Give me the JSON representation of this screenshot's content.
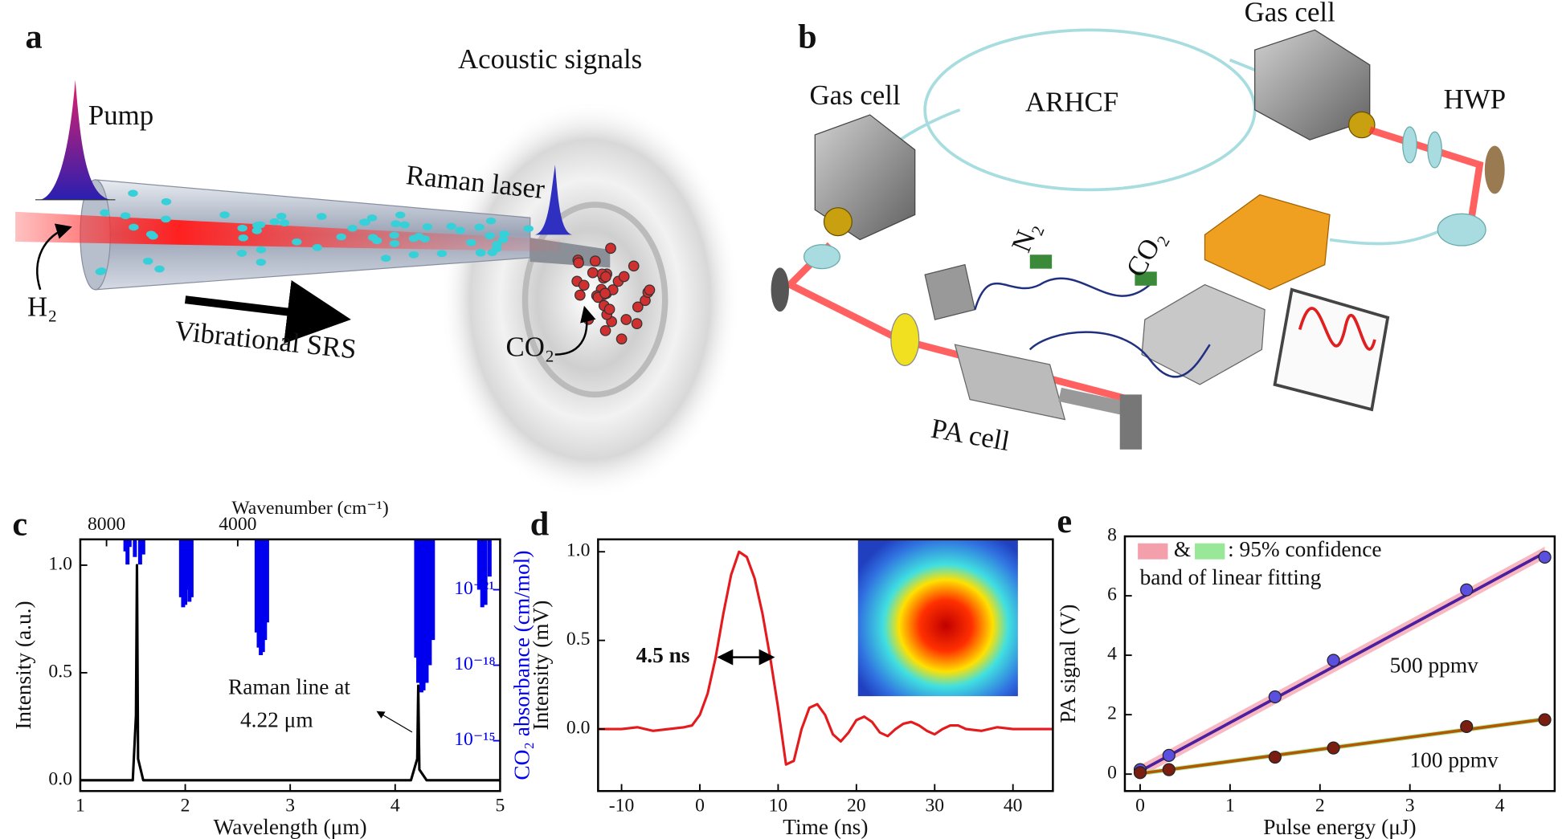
{
  "panel_a": {
    "label": "a",
    "acoustic": "Acoustic signals",
    "pump": "Pump",
    "raman": "Raman laser",
    "h2": "H₂",
    "srs": "Vibrational SRS",
    "co2": "CO₂"
  },
  "panel_b": {
    "label": "b",
    "gas_cell_top": "Gas cell",
    "gas_cell_left": "Gas cell",
    "fiber": "ARHCF",
    "hwp": "HWP",
    "n2": "N₂",
    "co2": "CO₂",
    "pa_cell": "PA cell"
  },
  "chart_data": [
    {
      "type": "line",
      "panel_label": "c",
      "xlabel": "Wavelength (μm)",
      "ylabel": "Intensity (a.u.)",
      "x2label": "Wavenumber (cm⁻¹)",
      "y2label": "CO₂ absorbance (cm/mol)",
      "xlim": [
        1,
        5
      ],
      "xticks": [
        1,
        2,
        3,
        4,
        5
      ],
      "ylim": [
        -0.05,
        1.12
      ],
      "yticks": [
        {
          "value": 0,
          "label": "0.0"
        },
        {
          "value": 0.5,
          "label": "0.5"
        },
        {
          "value": 1.0,
          "label": "1.0"
        }
      ],
      "x2lim": [
        10000,
        2000
      ],
      "x2ticks": [
        8000,
        4000
      ],
      "x2_scale": "reciprocal",
      "y2lim": [
        1e-13,
        1e-23
      ],
      "y2_log": true,
      "y2ticks": [
        {
          "value": 1e-21,
          "label": "10⁻²¹"
        },
        {
          "value": 1e-18,
          "label": "10⁻¹⁸"
        },
        {
          "value": 1e-15,
          "label": "10⁻¹⁵"
        }
      ],
      "y2color": "#0000ee",
      "annotation": [
        "Raman line at",
        "4.22 μm"
      ],
      "series": [
        {
          "color": "#000000",
          "x": [
            1.0,
            1.5,
            1.53,
            1.54,
            1.55,
            1.6,
            4.15,
            4.21,
            4.22,
            4.23,
            4.3,
            5.0
          ],
          "values": [
            0,
            0,
            0.3,
            1.0,
            0.1,
            0,
            0,
            0.1,
            0.44,
            0.05,
            0,
            0
          ]
        },
        {
          "color": "#0000ee",
          "axis": "y2",
          "draw_as": "vlines",
          "x": [
            1.43,
            1.45,
            1.47,
            1.52,
            1.57,
            1.6,
            1.96,
            1.98,
            2.0,
            2.01,
            2.04,
            2.06,
            2.68,
            2.7,
            2.72,
            2.74,
            2.76,
            2.78,
            4.2,
            4.22,
            4.25,
            4.27,
            4.3,
            4.33,
            4.36,
            4.8,
            4.83,
            4.86,
            4.9
          ],
          "values": [
            3e-23,
            1e-22,
            2e-23,
            5e-23,
            1e-22,
            4e-23,
            2e-21,
            5e-21,
            4e-21,
            1e-21,
            3e-21,
            2e-21,
            5e-20,
            2e-19,
            4e-19,
            3e-19,
            1e-19,
            2e-20,
            5e-19,
            5e-18,
            1.2e-17,
            1e-17,
            5e-18,
            1e-18,
            1e-19,
            1e-21,
            5e-21,
            4e-21,
            3e-22
          ]
        }
      ]
    },
    {
      "type": "line",
      "panel_label": "d",
      "xlabel": "Time (ns)",
      "ylabel": "Intensity (mV)",
      "xlim": [
        -13,
        45.1
      ],
      "xticks": [
        -10,
        0,
        10,
        20,
        30,
        40
      ],
      "ylim": [
        -0.35,
        1.07
      ],
      "yticks": [
        {
          "value": 0,
          "label": "0.0"
        },
        {
          "value": 0.5,
          "label": "0.5"
        },
        {
          "value": 1.0,
          "label": "1.0"
        }
      ],
      "annotation": [
        "4.5 ns"
      ],
      "series": [
        {
          "color": "#e41a1c",
          "x": [
            -13,
            -10,
            -8,
            -6,
            -4,
            -2,
            -1,
            0,
            1,
            2,
            3,
            4,
            5,
            6,
            7,
            8,
            9,
            10,
            11,
            12,
            13,
            14,
            15,
            16,
            17,
            18,
            19,
            20,
            21,
            22,
            23,
            24,
            25,
            26,
            27,
            28,
            29,
            30,
            31,
            32,
            33,
            34,
            36,
            38,
            40,
            42,
            45
          ],
          "values": [
            0,
            0,
            0.01,
            -0.01,
            0,
            0.01,
            0.02,
            0.08,
            0.2,
            0.4,
            0.65,
            0.87,
            1.0,
            0.97,
            0.85,
            0.65,
            0.4,
            0.12,
            -0.2,
            -0.18,
            0,
            0.12,
            0.14,
            0.08,
            -0.03,
            -0.07,
            -0.02,
            0.05,
            0.07,
            0.04,
            -0.02,
            -0.04,
            0,
            0.03,
            0.04,
            0.02,
            -0.01,
            -0.03,
            0,
            0.02,
            0.02,
            0,
            -0.01,
            0.01,
            0,
            0,
            0
          ]
        }
      ]
    },
    {
      "type": "scatter",
      "panel_label": "e",
      "xlabel": "Pulse energy (μJ)",
      "ylabel": "PA signal (V)",
      "xlim": [
        -0.17,
        4.61
      ],
      "xticks": [
        0,
        1,
        2,
        3,
        4
      ],
      "ylim": [
        -0.57,
        8
      ],
      "yticks": [
        0,
        2,
        4,
        6,
        8
      ],
      "legend": {
        "items": [
          "&",
          ": 95% confidence"
        ],
        "note": "band of linear fitting"
      },
      "series": [
        {
          "name": "500 ppmv",
          "color": "#5b4fe0",
          "x": [
            0,
            0.32,
            1.5,
            2.15,
            3.63,
            4.5
          ],
          "values": [
            0.15,
            0.63,
            2.6,
            3.83,
            6.2,
            7.3
          ],
          "fit": {
            "color": "#4b1f9e",
            "band_color": "#f4a0ac",
            "x": [
              0,
              4.5
            ],
            "values": [
              0.1,
              7.45
            ],
            "band": 0.2
          }
        },
        {
          "name": "100 ppmv",
          "color": "#7a1e12",
          "x": [
            0,
            0.32,
            1.5,
            2.15,
            3.63,
            4.5
          ],
          "values": [
            0.05,
            0.15,
            0.57,
            0.88,
            1.6,
            1.83
          ],
          "fit": {
            "color": "#b35a00",
            "band_color": "#98e898",
            "x": [
              0,
              4.5
            ],
            "values": [
              0.02,
              1.85
            ],
            "band": 0.08
          }
        }
      ]
    }
  ]
}
